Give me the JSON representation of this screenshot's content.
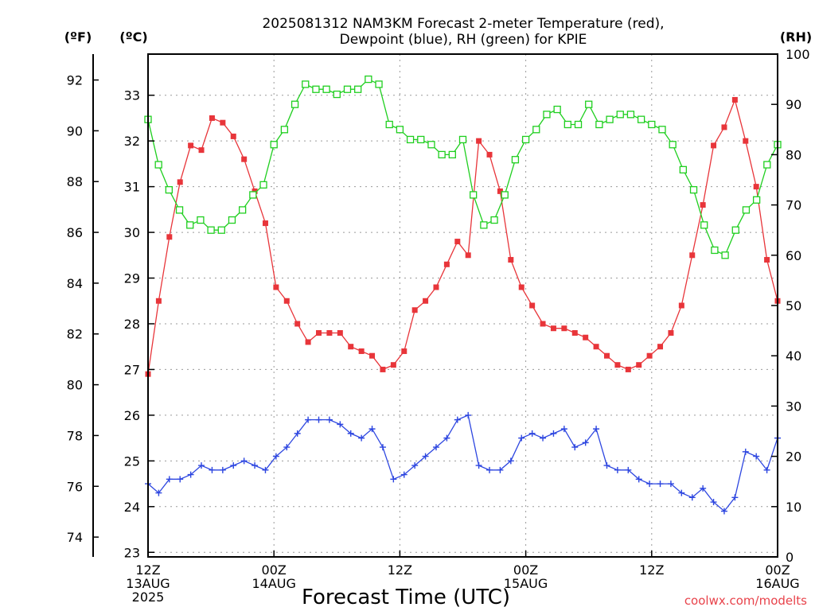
{
  "chart_data": {
    "type": "line",
    "title_line1": "2025081312 NAM3KM Forecast 2-meter Temperature (red),",
    "title_line2": "Dewpoint (blue), RH (green) for KPIE",
    "xlabel": "Forecast Time (UTC)",
    "credit": "coolwx.com/modelts",
    "units": {
      "f": "(ºF)",
      "c": "(ºC)",
      "rh": "(RH)"
    },
    "x_range": [
      0,
      60
    ],
    "x_ticks": [
      {
        "x": 0,
        "l1": "12Z",
        "l2": "13AUG",
        "l3": "2025"
      },
      {
        "x": 12,
        "l1": "00Z",
        "l2": "14AUG",
        "l3": ""
      },
      {
        "x": 24,
        "l1": "12Z",
        "l2": "",
        "l3": ""
      },
      {
        "x": 36,
        "l1": "00Z",
        "l2": "15AUG",
        "l3": ""
      },
      {
        "x": 48,
        "l1": "12Z",
        "l2": "",
        "l3": ""
      },
      {
        "x": 60,
        "l1": "00Z",
        "l2": "16AUG",
        "l3": ""
      }
    ],
    "c_range": [
      22.9,
      33.9
    ],
    "c_ticks": [
      23,
      24,
      25,
      26,
      27,
      28,
      29,
      30,
      31,
      32,
      33
    ],
    "f_ticks": [
      74,
      76,
      78,
      80,
      82,
      84,
      86,
      88,
      90,
      92
    ],
    "rh_range": [
      0,
      100
    ],
    "rh_ticks": [
      0,
      10,
      20,
      30,
      40,
      50,
      60,
      70,
      80,
      90,
      100
    ],
    "colors": {
      "temperature": "#e8353a",
      "dewpoint": "#2d46e0",
      "rh": "#1fcf1f"
    },
    "series": [
      {
        "key": "temperature",
        "axis": "c",
        "values": [
          26.9,
          28.5,
          29.9,
          31.1,
          31.9,
          31.8,
          32.5,
          32.4,
          32.1,
          31.6,
          30.9,
          30.2,
          28.8,
          28.5,
          28.0,
          27.6,
          27.8,
          27.8,
          27.8,
          27.5,
          27.4,
          27.3,
          27.0,
          27.1,
          27.4,
          28.3,
          28.5,
          28.8,
          29.3,
          29.8,
          29.5,
          32.0,
          31.7,
          30.9,
          29.4,
          28.8,
          28.4,
          28.0,
          27.9,
          27.9,
          27.8,
          27.7,
          27.5,
          27.3,
          27.1,
          27.0,
          27.1,
          27.3,
          27.5,
          27.8,
          28.4,
          29.5,
          30.6,
          31.9,
          32.3,
          32.9,
          32.0,
          31.0,
          29.4,
          28.5
        ]
      },
      {
        "key": "dewpoint",
        "axis": "c",
        "values": [
          24.5,
          24.3,
          24.6,
          24.6,
          24.7,
          24.9,
          24.8,
          24.8,
          24.9,
          25.0,
          24.9,
          24.8,
          25.1,
          25.3,
          25.6,
          25.9,
          25.9,
          25.9,
          25.8,
          25.6,
          25.5,
          25.7,
          25.3,
          24.6,
          24.7,
          24.9,
          25.1,
          25.3,
          25.5,
          25.9,
          26.0,
          24.9,
          24.8,
          24.8,
          25.0,
          25.5,
          25.6,
          25.5,
          25.6,
          25.7,
          25.3,
          25.4,
          25.7,
          24.9,
          24.8,
          24.8,
          24.6,
          24.5,
          24.5,
          24.5,
          24.3,
          24.2,
          24.4,
          24.1,
          23.9,
          24.2,
          25.2,
          25.1,
          24.8,
          25.5
        ]
      },
      {
        "key": "rh",
        "axis": "rh",
        "values": [
          87,
          78,
          73,
          69,
          66,
          67,
          65,
          65,
          67,
          69,
          72,
          74,
          82,
          85,
          90,
          94,
          93,
          93,
          92,
          93,
          93,
          95,
          94,
          86,
          85,
          83,
          83,
          82,
          80,
          80,
          83,
          72,
          66,
          67,
          72,
          79,
          83,
          85,
          88,
          89,
          86,
          86,
          90,
          86,
          87,
          88,
          88,
          87,
          86,
          85,
          82,
          77,
          73,
          66,
          61,
          60,
          65,
          69,
          71,
          78,
          82
        ]
      }
    ]
  }
}
